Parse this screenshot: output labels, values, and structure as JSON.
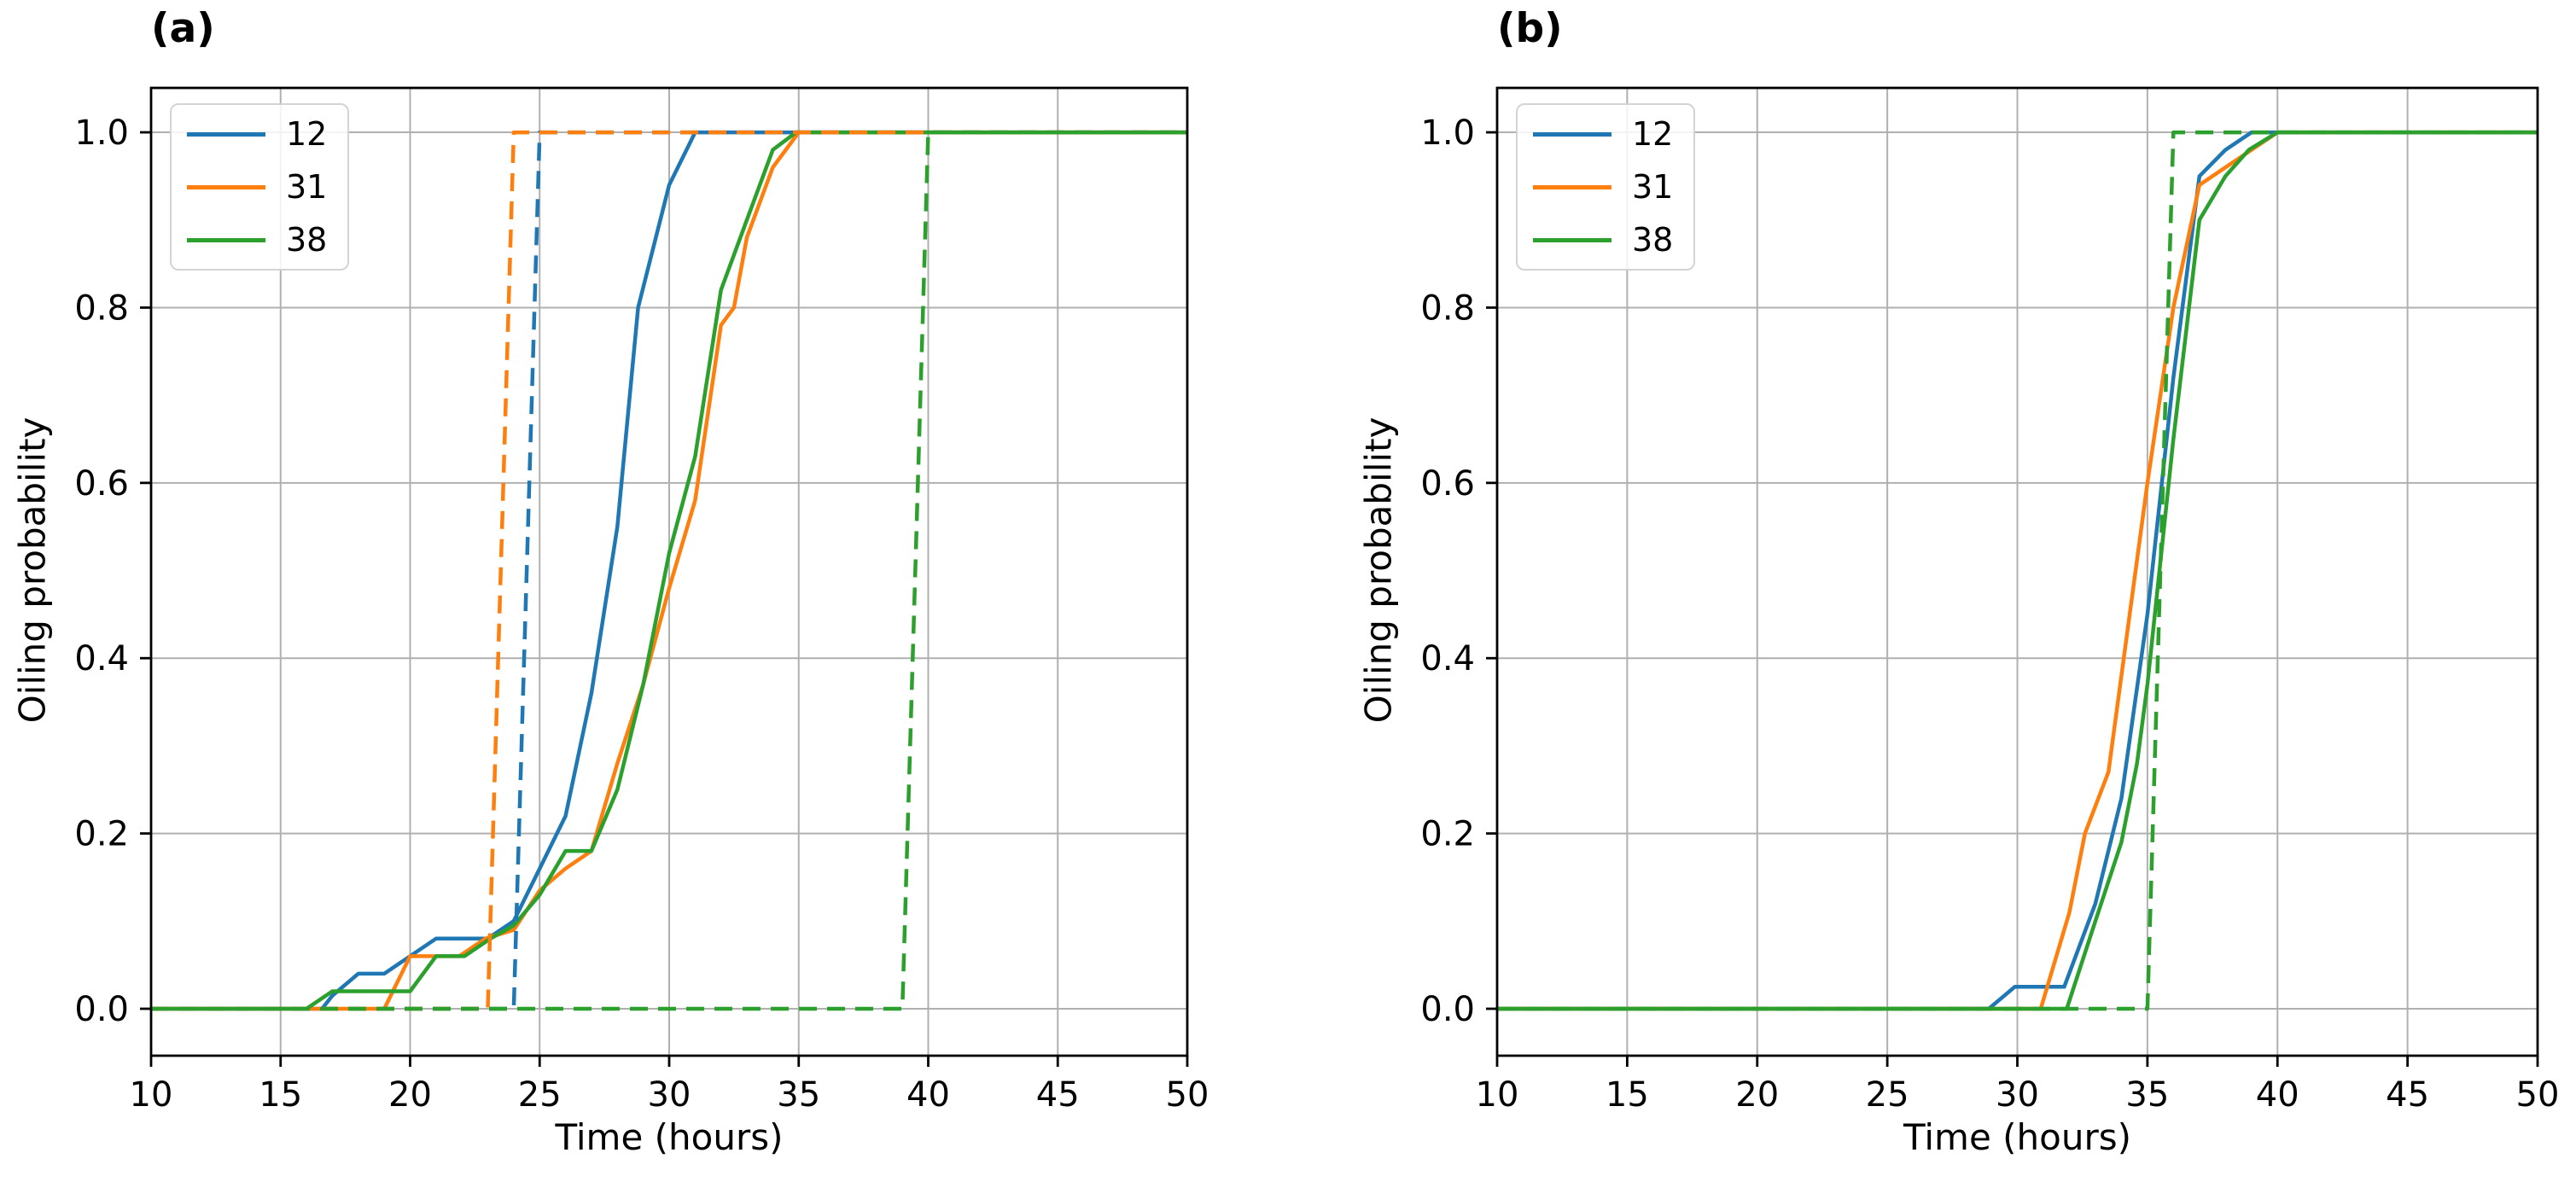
{
  "figure": {
    "background": "#ffffff",
    "panel_count": 2
  },
  "colors": {
    "series_12": "#1f77b4",
    "series_31": "#ff7f0e",
    "series_38": "#2ca02c",
    "grid": "#b0b0b0",
    "spine": "#000000",
    "text": "#000000",
    "legend_border": "#d4d4d4"
  },
  "chart_data": [
    {
      "type": "line",
      "title": "(a)",
      "xlabel": "Time (hours)",
      "ylabel": "Oiling probability",
      "xlim": [
        10,
        50
      ],
      "ylim": [
        0,
        1
      ],
      "xticks": [
        "10",
        "15",
        "20",
        "25",
        "30",
        "35",
        "40",
        "45",
        "50"
      ],
      "xtick_values": [
        10,
        15,
        20,
        25,
        30,
        35,
        40,
        45,
        50
      ],
      "yticks": [
        "0.0",
        "0.2",
        "0.4",
        "0.6",
        "0.8",
        "1.0"
      ],
      "ytick_values": [
        0.0,
        0.2,
        0.4,
        0.6,
        0.8,
        1.0
      ],
      "grid": true,
      "legend": {
        "position": "upper-left",
        "entries": [
          "12",
          "31",
          "38"
        ]
      },
      "series": [
        {
          "label": "12",
          "style": "solid",
          "color": "#1f77b4",
          "points": [
            [
              10,
              0
            ],
            [
              16.6,
              0
            ],
            [
              17,
              0.015
            ],
            [
              18,
              0.04
            ],
            [
              19,
              0.04
            ],
            [
              21,
              0.08
            ],
            [
              23,
              0.08
            ],
            [
              24,
              0.1
            ],
            [
              25,
              0.16
            ],
            [
              26,
              0.22
            ],
            [
              27,
              0.36
            ],
            [
              28,
              0.55
            ],
            [
              28.8,
              0.8
            ],
            [
              30,
              0.94
            ],
            [
              31,
              1
            ],
            [
              50,
              1
            ]
          ]
        },
        {
          "label": "31",
          "style": "solid",
          "color": "#ff7f0e",
          "points": [
            [
              10,
              0
            ],
            [
              19,
              0
            ],
            [
              20,
              0.06
            ],
            [
              21.9,
              0.06
            ],
            [
              22.9,
              0.08
            ],
            [
              24,
              0.09
            ],
            [
              25,
              0.135
            ],
            [
              26,
              0.16
            ],
            [
              27,
              0.18
            ],
            [
              28,
              0.28
            ],
            [
              29,
              0.37
            ],
            [
              30,
              0.48
            ],
            [
              31,
              0.58
            ],
            [
              32,
              0.78
            ],
            [
              32.5,
              0.8
            ],
            [
              33,
              0.88
            ],
            [
              34,
              0.96
            ],
            [
              35,
              1
            ],
            [
              50,
              1
            ]
          ]
        },
        {
          "label": "38",
          "style": "solid",
          "color": "#2ca02c",
          "points": [
            [
              10,
              0
            ],
            [
              16,
              0
            ],
            [
              17,
              0.02
            ],
            [
              20,
              0.02
            ],
            [
              21,
              0.06
            ],
            [
              22.1,
              0.06
            ],
            [
              23.1,
              0.08
            ],
            [
              24,
              0.095
            ],
            [
              25,
              0.13
            ],
            [
              26,
              0.18
            ],
            [
              27,
              0.18
            ],
            [
              28,
              0.25
            ],
            [
              29,
              0.37
            ],
            [
              30,
              0.52
            ],
            [
              31,
              0.63
            ],
            [
              32,
              0.82
            ],
            [
              33,
              0.9
            ],
            [
              34,
              0.98
            ],
            [
              34.9,
              1
            ],
            [
              50,
              1
            ]
          ]
        },
        {
          "label": "12",
          "style": "dashed",
          "color": "#1f77b4",
          "points": [
            [
              10,
              0
            ],
            [
              24,
              0
            ],
            [
              25,
              1
            ],
            [
              50,
              1
            ]
          ]
        },
        {
          "label": "31",
          "style": "dashed",
          "color": "#ff7f0e",
          "points": [
            [
              10,
              0
            ],
            [
              23,
              0
            ],
            [
              24,
              1
            ],
            [
              50,
              1
            ]
          ]
        },
        {
          "label": "38",
          "style": "dashed",
          "color": "#2ca02c",
          "points": [
            [
              10,
              0
            ],
            [
              39,
              0
            ],
            [
              40,
              1
            ],
            [
              50,
              1
            ]
          ]
        }
      ]
    },
    {
      "type": "line",
      "title": "(b)",
      "xlabel": "Time (hours)",
      "ylabel": "Oiling probability",
      "xlim": [
        10,
        50
      ],
      "ylim": [
        0,
        1
      ],
      "xticks": [
        "10",
        "15",
        "20",
        "25",
        "30",
        "35",
        "40",
        "45",
        "50"
      ],
      "xtick_values": [
        10,
        15,
        20,
        25,
        30,
        35,
        40,
        45,
        50
      ],
      "yticks": [
        "0.0",
        "0.2",
        "0.4",
        "0.6",
        "0.8",
        "1.0"
      ],
      "ytick_values": [
        0.0,
        0.2,
        0.4,
        0.6,
        0.8,
        1.0
      ],
      "grid": true,
      "legend": {
        "position": "upper-left",
        "entries": [
          "12",
          "31",
          "38"
        ]
      },
      "series": [
        {
          "label": "12",
          "style": "solid",
          "color": "#1f77b4",
          "points": [
            [
              10,
              0
            ],
            [
              28.9,
              0
            ],
            [
              29.9,
              0.025
            ],
            [
              31.8,
              0.025
            ],
            [
              33,
              0.12
            ],
            [
              34,
              0.24
            ],
            [
              35,
              0.45
            ],
            [
              36,
              0.72
            ],
            [
              37,
              0.95
            ],
            [
              38,
              0.98
            ],
            [
              39,
              1
            ],
            [
              50,
              1
            ]
          ]
        },
        {
          "label": "31",
          "style": "solid",
          "color": "#ff7f0e",
          "points": [
            [
              10,
              0
            ],
            [
              30.9,
              0
            ],
            [
              32,
              0.11
            ],
            [
              32.6,
              0.2
            ],
            [
              33.5,
              0.27
            ],
            [
              34,
              0.38
            ],
            [
              35,
              0.6
            ],
            [
              36,
              0.8
            ],
            [
              37,
              0.94
            ],
            [
              38,
              0.96
            ],
            [
              39,
              0.98
            ],
            [
              40,
              1
            ],
            [
              50,
              1
            ]
          ]
        },
        {
          "label": "38",
          "style": "solid",
          "color": "#2ca02c",
          "points": [
            [
              10,
              0
            ],
            [
              31.9,
              0
            ],
            [
              33,
              0.1
            ],
            [
              34,
              0.19
            ],
            [
              34.6,
              0.28
            ],
            [
              35,
              0.37
            ],
            [
              36,
              0.65
            ],
            [
              37,
              0.9
            ],
            [
              38,
              0.95
            ],
            [
              38.9,
              0.98
            ],
            [
              40,
              1
            ],
            [
              50,
              1
            ]
          ]
        },
        {
          "label": "38",
          "style": "dashed",
          "color": "#2ca02c",
          "points": [
            [
              10,
              0
            ],
            [
              35,
              0
            ],
            [
              36,
              1
            ],
            [
              50,
              1
            ]
          ]
        }
      ]
    }
  ]
}
